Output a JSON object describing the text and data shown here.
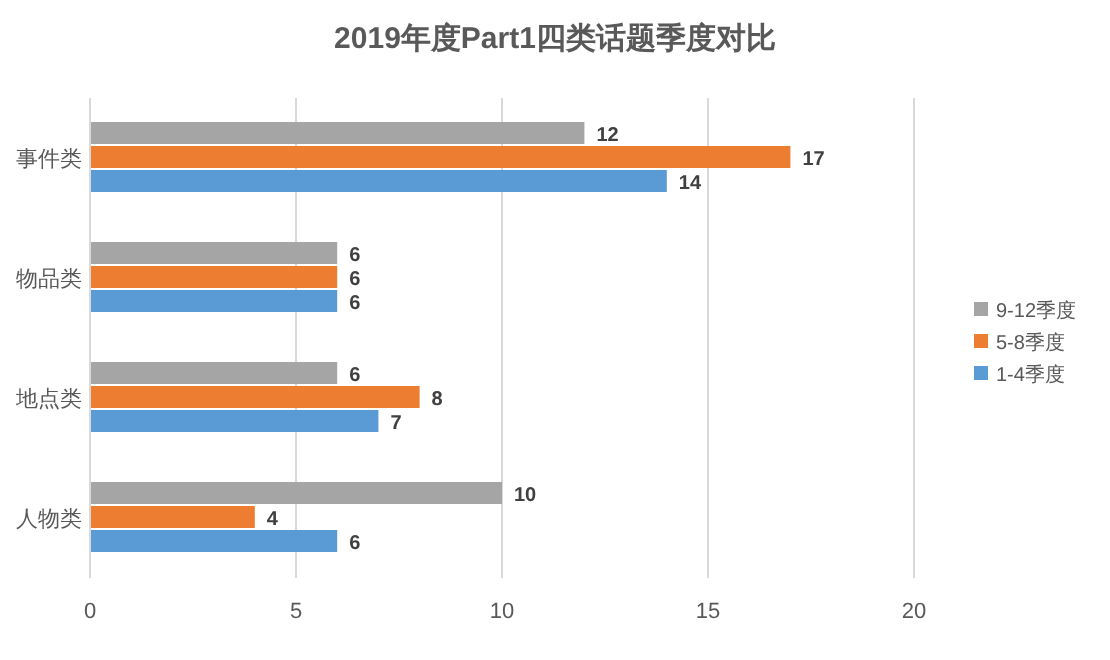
{
  "chart_data": {
    "type": "bar",
    "orientation": "horizontal",
    "title": "2019年度Part1四类话题季度对比",
    "categories": [
      "事件类",
      "物品类",
      "地点类",
      "人物类"
    ],
    "series": [
      {
        "name": "9-12季度",
        "color": "#a5a5a5",
        "values": [
          12,
          6,
          6,
          10
        ]
      },
      {
        "name": "5-8季度",
        "color": "#ed7d31",
        "values": [
          17,
          6,
          8,
          4
        ]
      },
      {
        "name": "1-4季度",
        "color": "#5b9bd5",
        "values": [
          14,
          6,
          7,
          6
        ]
      }
    ],
    "xlim": [
      0,
      20
    ],
    "xticks": [
      0,
      5,
      10,
      15,
      20
    ],
    "grid": "x",
    "legend": "right",
    "data_labels": true
  }
}
